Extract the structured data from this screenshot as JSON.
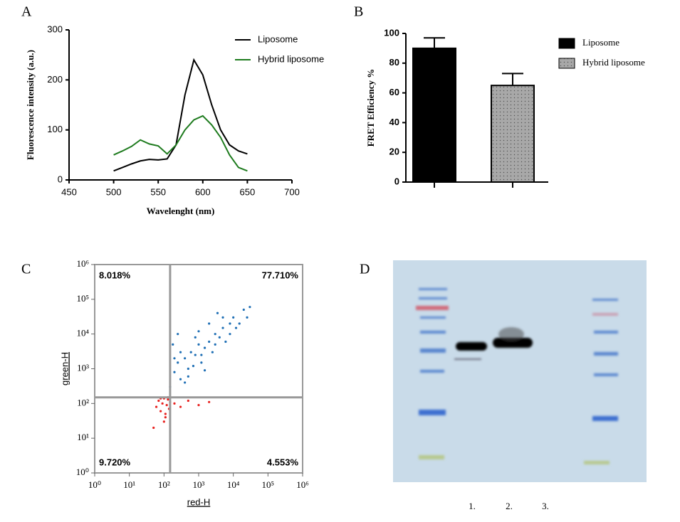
{
  "chart_data": [
    {
      "type": "line",
      "panel": "A",
      "xlabel": "Wavelenght (nm)",
      "ylabel": "Fluorescence intensity (a.u.)",
      "x": [
        500,
        510,
        520,
        530,
        540,
        550,
        560,
        570,
        580,
        590,
        600,
        610,
        620,
        630,
        640,
        650
      ],
      "series": [
        {
          "name": "Liposome",
          "color": "#000000",
          "values": [
            18,
            25,
            32,
            38,
            41,
            40,
            42,
            70,
            170,
            240,
            210,
            150,
            100,
            70,
            58,
            52
          ]
        },
        {
          "name": "Hybrid liposome",
          "color": "#1e7b1e",
          "values": [
            50,
            58,
            67,
            80,
            72,
            68,
            52,
            70,
            100,
            120,
            128,
            110,
            85,
            50,
            25,
            18
          ]
        }
      ],
      "xlim": [
        450,
        700
      ],
      "xticks": [
        450,
        500,
        550,
        600,
        650,
        700
      ],
      "ylim": [
        0,
        300
      ],
      "yticks": [
        0,
        100,
        200,
        300
      ],
      "legend": "upper right"
    },
    {
      "type": "bar",
      "panel": "B",
      "ylabel": "FRET Efficiency %",
      "series": [
        {
          "name": "Liposome",
          "color": "#000000",
          "values": [
            90
          ],
          "errors": [
            7
          ]
        },
        {
          "name": "Hybrid liposome",
          "color": "#a8a8a8",
          "values": [
            65
          ],
          "errors": [
            8
          ]
        }
      ],
      "ylim": [
        0,
        100
      ],
      "yticks": [
        0,
        20,
        40,
        60,
        80,
        100
      ],
      "legend": "right"
    },
    {
      "type": "scatter",
      "panel": "C",
      "xlabel": "red-H",
      "ylabel": "green-H",
      "log_x": true,
      "log_y": true,
      "series": [
        {
          "color": "#1f6fb5",
          "x": [
            150,
            200,
            250,
            300,
            400,
            500,
            600,
            800,
            1000,
            1200,
            1500,
            2000,
            2500,
            3000,
            4000,
            5000,
            6000,
            8000,
            10000,
            15000,
            20000,
            30000,
            200,
            300,
            500,
            800,
            1000,
            1500,
            2000,
            3000,
            5000,
            8000,
            400,
            700,
            1200,
            250,
            180,
            3500,
            12000,
            25000
          ],
          "values": [
            300,
            800,
            1500,
            500,
            2000,
            1000,
            3000,
            2500,
            5000,
            1500,
            4000,
            6000,
            3000,
            10000,
            8000,
            15000,
            6000,
            20000,
            30000,
            20000,
            50000,
            60000,
            2000,
            3000,
            600,
            8000,
            12000,
            900,
            20000,
            5000,
            30000,
            10000,
            400,
            1200,
            2500,
            10000,
            5000,
            40000,
            15000,
            30000
          ]
        },
        {
          "color": "#e8201e",
          "x": [
            60,
            70,
            80,
            90,
            100,
            110,
            120,
            130,
            140,
            150,
            200,
            300,
            500,
            1000,
            2000,
            50,
            100,
            130,
            80,
            110
          ],
          "values": [
            80,
            120,
            60,
            100,
            140,
            50,
            90,
            130,
            70,
            110,
            100,
            80,
            120,
            90,
            110,
            20,
            30,
            150,
            140,
            40
          ]
        }
      ],
      "gate_x": 150,
      "gate_y": 150,
      "quadrant_labels": [
        "8.018%",
        "77.710%",
        "9.720%",
        "4.553%"
      ],
      "xlim": [
        1,
        1000000
      ],
      "ylim": [
        1,
        1000000
      ],
      "xticks": [
        {
          "value": 1,
          "label": "10⁰"
        },
        {
          "value": 10,
          "label": "10¹"
        },
        {
          "value": 100,
          "label": "10²"
        },
        {
          "value": 1000,
          "label": "10³"
        },
        {
          "value": 10000,
          "label": "10⁴"
        },
        {
          "value": 100000,
          "label": "10⁵"
        },
        {
          "value": 1000000,
          "label": "10⁶"
        }
      ],
      "yticks": [
        {
          "value": 1,
          "label": "10⁰"
        },
        {
          "value": 10,
          "label": "10¹"
        },
        {
          "value": 100,
          "label": "10²"
        },
        {
          "value": 1000,
          "label": "10³"
        },
        {
          "value": 10000,
          "label": "10⁴"
        },
        {
          "value": 100000,
          "label": "10⁵"
        },
        {
          "value": 1000000,
          "label": "10⁶"
        }
      ]
    }
  ],
  "gel": {
    "panel": "D",
    "lanes": [
      "1.",
      "2.",
      "3."
    ]
  }
}
